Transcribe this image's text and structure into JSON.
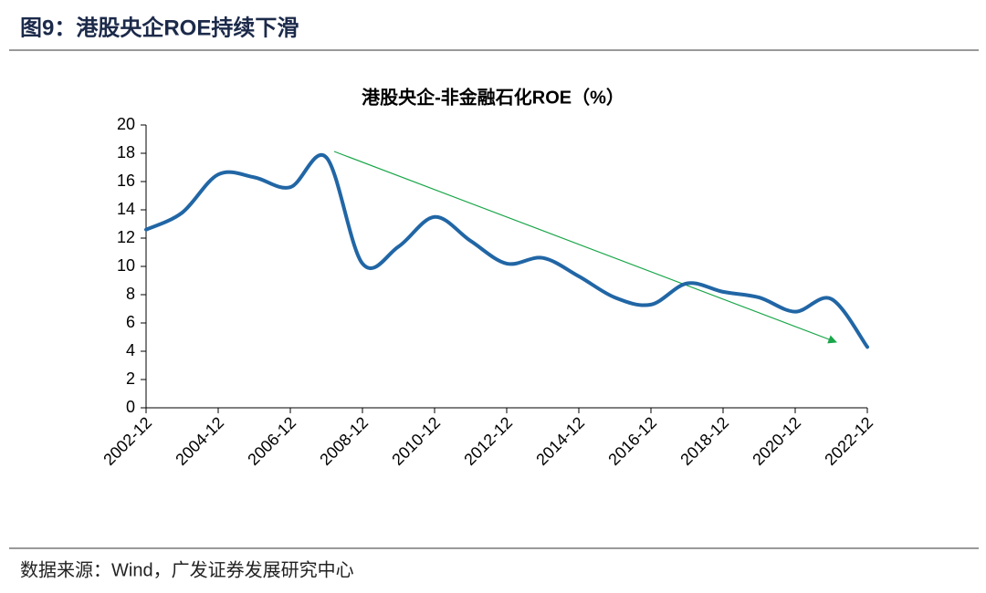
{
  "chart_data": {
    "type": "line",
    "figure_title": "图9：港股央企ROE持续下滑",
    "title": "港股央企-非金融石化ROE（%）",
    "source": "数据来源：Wind，广发证券发展研究中心",
    "categories": [
      "2002-12",
      null,
      "2004-12",
      null,
      "2006-12",
      null,
      "2008-12",
      null,
      "2010-12",
      null,
      "2012-12",
      null,
      "2014-12",
      null,
      "2016-12",
      null,
      "2018-12",
      null,
      "2020-12",
      null,
      "2022-12"
    ],
    "values": [
      12.6,
      13.8,
      16.5,
      16.3,
      15.6,
      17.7,
      10.2,
      11.4,
      13.5,
      11.8,
      10.2,
      10.6,
      9.3,
      7.8,
      7.3,
      8.8,
      8.2,
      7.8,
      6.8,
      7.7,
      4.3
    ],
    "color": "#2166a5",
    "ylim": [
      0,
      20
    ],
    "yticks": [
      0,
      2,
      4,
      6,
      8,
      10,
      12,
      14,
      16,
      18,
      20
    ],
    "grid": false
  }
}
